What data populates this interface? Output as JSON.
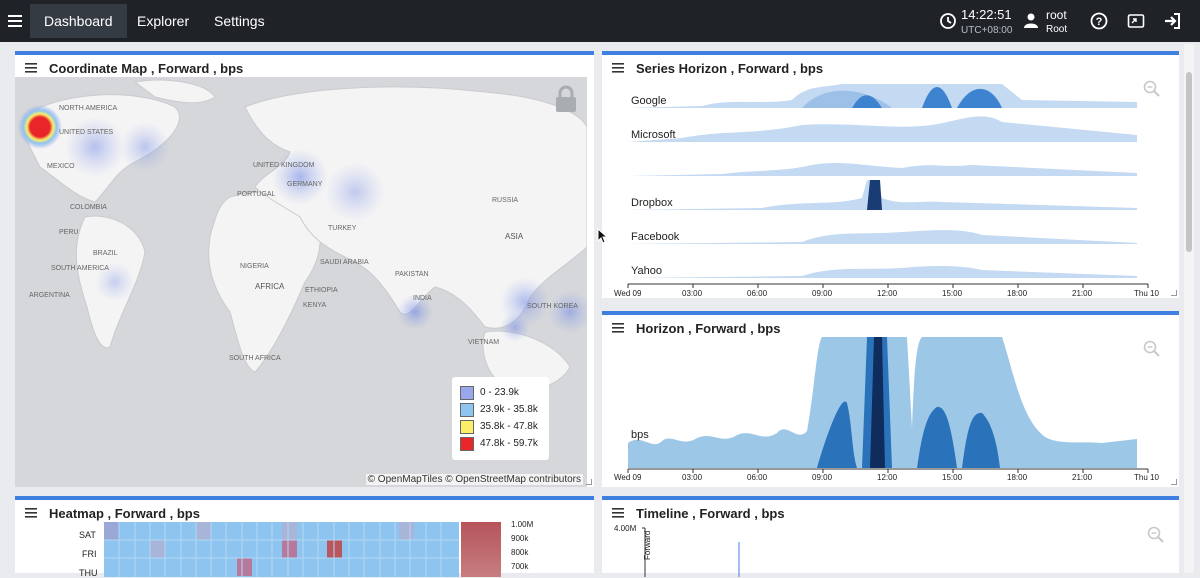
{
  "nav": {
    "items": [
      "Dashboard",
      "Explorer",
      "Settings"
    ],
    "clock": "14:22:51",
    "timezone": "UTC+08:00",
    "user": "root",
    "role": "Root"
  },
  "panels": {
    "map": {
      "title": "Coordinate Map , Forward , bps",
      "legend": [
        "0 - 23.9k",
        "23.9k - 35.8k",
        "35.8k - 47.8k",
        "47.8k - 59.7k"
      ],
      "legend_colors": [
        "#99a8ec",
        "#8ec5f0",
        "#fbef6a",
        "#e8262a"
      ],
      "attribution": "© OpenMapTiles © OpenStreetMap contributors",
      "labels": [
        "NORTH AMERICA",
        "UNITED STATES",
        "MEXICO",
        "UNITED KINGDOM",
        "GERMANY",
        "PORTUGAL",
        "RUSSIA",
        "TURKEY",
        "BRAZIL",
        "PERU",
        "COLOMBIA",
        "SOUTH AMERICA",
        "ARGENTINA",
        "NIGERIA",
        "AFRICA",
        "ETHIOPIA",
        "KENYA",
        "SAUDI ARABIA",
        "PAKISTAN",
        "INDIA",
        "ASIA",
        "SOUTH KOREA",
        "VIETNAM",
        "SOUTH AFRICA"
      ]
    },
    "series_horizon": {
      "title": "Series Horizon , Forward , bps",
      "series": [
        "Google",
        "Microsoft",
        "",
        "Dropbox",
        "Facebook",
        "Yahoo"
      ],
      "ticks": [
        "Wed 09",
        "03:00",
        "06:00",
        "09:00",
        "12:00",
        "15:00",
        "18:00",
        "21:00",
        "Thu 10"
      ]
    },
    "horizon": {
      "title": "Horizon , Forward , bps",
      "series_label": "bps",
      "ticks": [
        "Wed 09",
        "03:00",
        "06:00",
        "09:00",
        "12:00",
        "15:00",
        "18:00",
        "21:00",
        "Thu 10"
      ]
    },
    "heatmap": {
      "title": "Heatmap , Forward , bps",
      "rows": [
        "SAT",
        "FRI",
        "THU"
      ],
      "scale": [
        "1.00M",
        "900k",
        "800k",
        "700k"
      ]
    },
    "timeline": {
      "title": "Timeline , Forward , bps",
      "ymax": "4.00M",
      "series_label": "Forward"
    }
  }
}
